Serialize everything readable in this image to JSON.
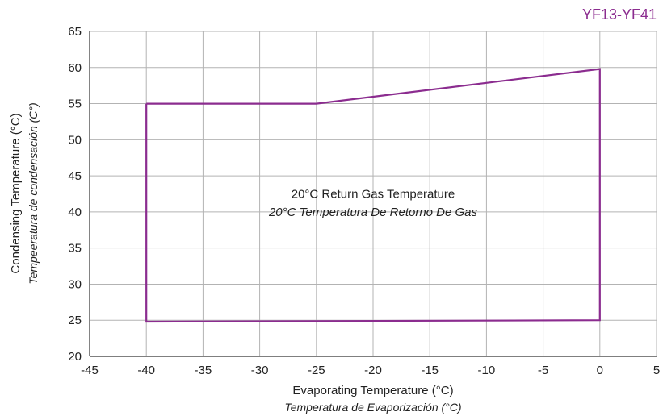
{
  "chart_data": {
    "type": "line",
    "title": "YF13-YF41",
    "xlabel": "Evaporating Temperature (°C)",
    "xlabel_secondary": "Temperatura de Evaporización (°C)",
    "ylabel": "Condensing Temperature (°C)",
    "ylabel_secondary": "Tempeeratura de condensación (C°)",
    "xlim": [
      -45,
      5
    ],
    "ylim": [
      20,
      65
    ],
    "xticks": [
      -45,
      -40,
      -35,
      -30,
      -25,
      -20,
      -15,
      -10,
      -5,
      0,
      5
    ],
    "yticks": [
      20,
      25,
      30,
      35,
      40,
      45,
      50,
      55,
      60,
      65
    ],
    "grid": true,
    "series": [
      {
        "name": "",
        "x": [
          -40,
          -25,
          0,
          0,
          -40,
          -40
        ],
        "y": [
          55,
          55,
          59.8,
          25,
          24.8,
          55
        ]
      }
    ],
    "annotations": [
      {
        "text": "20°C Return Gas Temperature",
        "x": -20,
        "y": 42.5,
        "style": "normal"
      },
      {
        "text": "20°C Temperatura De Retorno De Gas",
        "x": -20,
        "y": 40,
        "style": "italic"
      }
    ]
  },
  "colors": {
    "envelope": "#8b2c8f",
    "title": "#8b2c8f",
    "grid": "#b3b3b3",
    "axis": "#333333",
    "text": "#222222"
  }
}
